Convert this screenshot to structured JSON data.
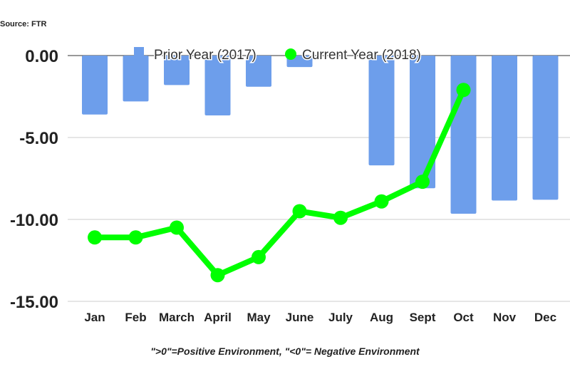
{
  "source_note": "Source: FTR",
  "footnote": "\">0\"=Positive Environment, \"<0\"= Negative Environment",
  "chart_data": {
    "type": "bar+line",
    "categories": [
      "Jan",
      "Feb",
      "March",
      "April",
      "May",
      "June",
      "July",
      "Aug",
      "Sept",
      "Oct",
      "Nov",
      "Dec"
    ],
    "series": [
      {
        "name": "Prior Year (2017)",
        "type": "bar",
        "color": "#6d9eeb",
        "values": [
          -3.6,
          -2.8,
          -1.8,
          -3.65,
          -1.9,
          -0.7,
          0,
          -6.7,
          -8.1,
          -9.65,
          -8.85,
          -8.8
        ]
      },
      {
        "name": "Current Year (2018)",
        "type": "line",
        "color": "#00ff00",
        "values": [
          -11.1,
          -11.1,
          -10.5,
          -13.4,
          -12.3,
          -9.5,
          -9.9,
          -8.9,
          -7.7,
          -2.1,
          null,
          null
        ]
      }
    ],
    "ylim": [
      -15,
      0
    ],
    "yticks": [
      "0.00",
      "-5.00",
      "-10.00",
      "-15.00"
    ],
    "ytick_values": [
      0,
      -5,
      -10,
      -15
    ],
    "grid": true,
    "legend": "top"
  }
}
